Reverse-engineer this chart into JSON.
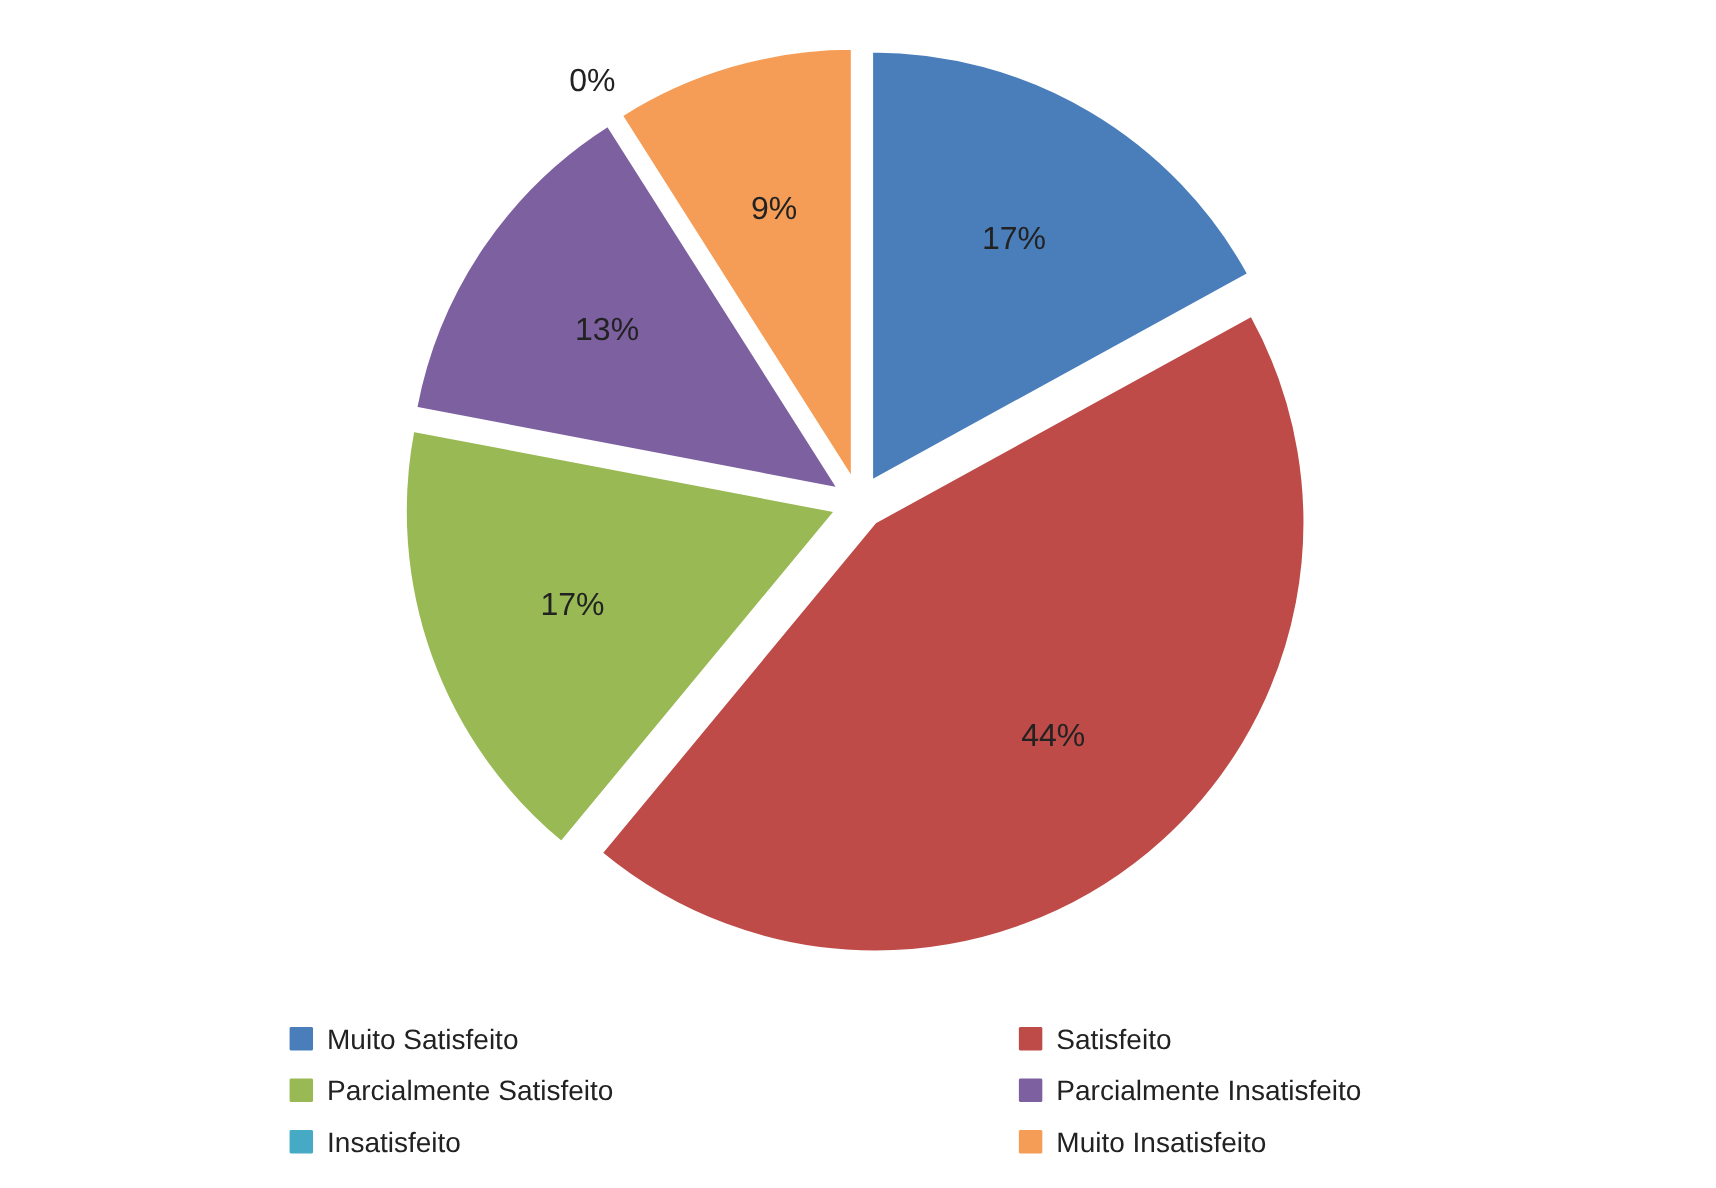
{
  "chart_data": {
    "type": "pie",
    "categories": [
      "Muito Satisfeito",
      "Satisfeito",
      "Parcialmente Satisfeito",
      "Parcialmente Insatisfeito",
      "Insatisfeito",
      "Muito Insatisfeito"
    ],
    "values": [
      17,
      44,
      17,
      13,
      0,
      9
    ],
    "colors": [
      "#4a7ebb",
      "#be4b48",
      "#98b954",
      "#7d60a0",
      "#46aac5",
      "#f59d56"
    ],
    "value_labels": [
      "17%",
      "44%",
      "17%",
      "13%",
      "0%",
      "9%"
    ],
    "legend": "bottom"
  }
}
